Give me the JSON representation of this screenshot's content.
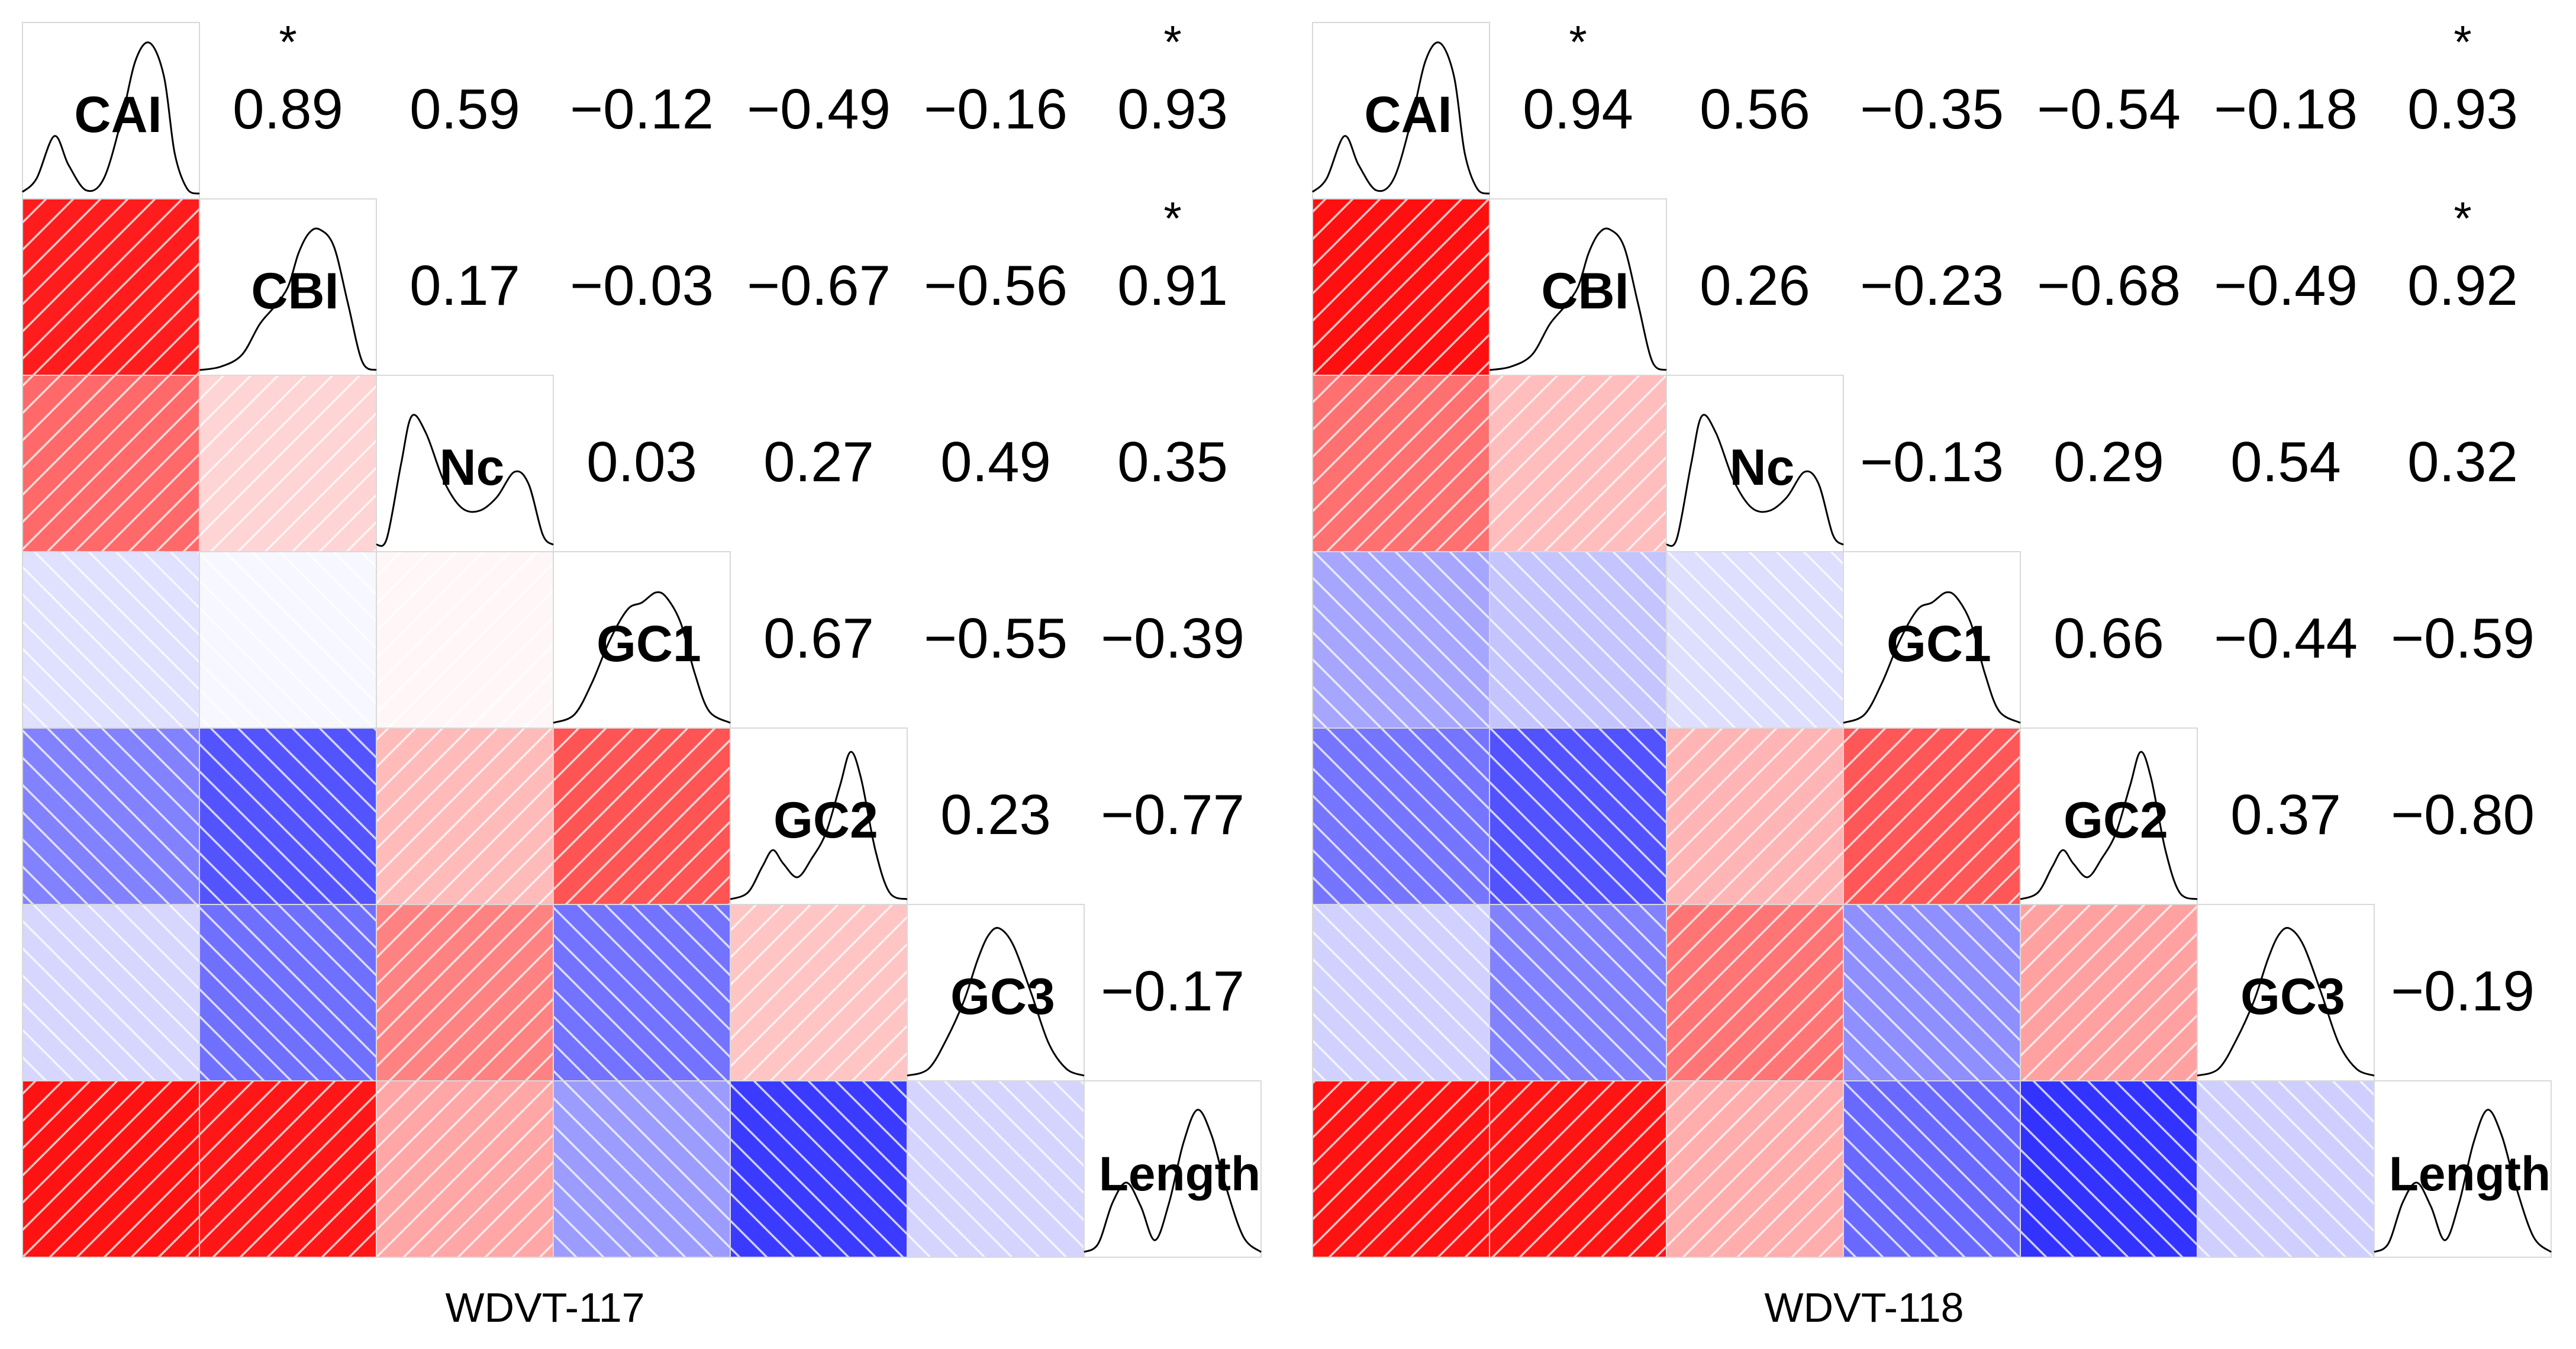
{
  "figure": {
    "variables": [
      "CAI",
      "CBI",
      "Nc",
      "GC1",
      "GC2",
      "GC3",
      "Length"
    ],
    "significance_marker": "*",
    "colors": {
      "positive": "#ff0000",
      "negative": "#0000ff",
      "neutral": "#ffffff",
      "cell_border": "#d9d9d9",
      "hatch": "#ffffff",
      "density": "#000000",
      "text": "#000000"
    }
  },
  "chart_data": [
    {
      "type": "heatmap",
      "title": "WDVT-117",
      "variables": [
        "CAI",
        "CBI",
        "Nc",
        "GC1",
        "GC2",
        "GC3",
        "Length"
      ],
      "correlations": [
        [
          1,
          0.89,
          0.59,
          -0.12,
          -0.49,
          -0.16,
          0.93
        ],
        [
          0.89,
          1,
          0.17,
          -0.03,
          -0.67,
          -0.56,
          0.91
        ],
        [
          0.59,
          0.17,
          1,
          0.03,
          0.27,
          0.49,
          0.35
        ],
        [
          -0.12,
          -0.03,
          0.03,
          1,
          0.67,
          -0.55,
          -0.39
        ],
        [
          -0.49,
          -0.67,
          0.27,
          0.67,
          1,
          0.23,
          -0.77
        ],
        [
          -0.16,
          -0.56,
          0.49,
          -0.55,
          0.23,
          1,
          -0.17
        ],
        [
          0.93,
          0.91,
          0.35,
          -0.39,
          -0.77,
          -0.17,
          1
        ]
      ],
      "labels": [
        [
          "",
          "0.89",
          "0.59",
          "−0.12",
          "−0.49",
          "−0.16",
          "0.93"
        ],
        [
          "",
          "",
          "0.17",
          "−0.03",
          "−0.67",
          "−0.56",
          "0.91"
        ],
        [
          "",
          "",
          "",
          "0.03",
          "0.27",
          "0.49",
          "0.35"
        ],
        [
          "",
          "",
          "",
          "",
          "0.67",
          "−0.55",
          "−0.39"
        ],
        [
          "",
          "",
          "",
          "",
          "",
          "0.23",
          "−0.77"
        ],
        [
          "",
          "",
          "",
          "",
          "",
          "",
          "−0.17"
        ],
        [
          "",
          "",
          "",
          "",
          "",
          "",
          ""
        ]
      ],
      "significant": [
        [
          0,
          1
        ],
        [
          0,
          6
        ],
        [
          1,
          6
        ]
      ]
    },
    {
      "type": "heatmap",
      "title": "WDVT-118",
      "variables": [
        "CAI",
        "CBI",
        "Nc",
        "GC1",
        "GC2",
        "GC3",
        "Length"
      ],
      "correlations": [
        [
          1,
          0.94,
          0.56,
          -0.35,
          -0.54,
          -0.18,
          0.93
        ],
        [
          0.94,
          1,
          0.26,
          -0.23,
          -0.68,
          -0.49,
          0.92
        ],
        [
          0.56,
          0.26,
          1,
          -0.13,
          0.29,
          0.54,
          0.32
        ],
        [
          -0.35,
          -0.23,
          -0.13,
          1,
          0.66,
          -0.44,
          -0.59
        ],
        [
          -0.54,
          -0.68,
          0.29,
          0.66,
          1,
          0.37,
          -0.8
        ],
        [
          -0.18,
          -0.49,
          0.54,
          -0.44,
          0.37,
          1,
          -0.19
        ],
        [
          0.93,
          0.92,
          0.32,
          -0.59,
          -0.8,
          -0.19,
          1
        ]
      ],
      "labels": [
        [
          "",
          "0.94",
          "0.56",
          "−0.35",
          "−0.54",
          "−0.18",
          "0.93"
        ],
        [
          "",
          "",
          "0.26",
          "−0.23",
          "−0.68",
          "−0.49",
          "0.92"
        ],
        [
          "",
          "",
          "",
          "−0.13",
          "0.29",
          "0.54",
          "0.32"
        ],
        [
          "",
          "",
          "",
          "",
          "0.66",
          "−0.44",
          "−0.59"
        ],
        [
          "",
          "",
          "",
          "",
          "",
          "0.37",
          "−0.80"
        ],
        [
          "",
          "",
          "",
          "",
          "",
          "",
          "−0.19"
        ],
        [
          "",
          "",
          "",
          "",
          "",
          "",
          ""
        ]
      ],
      "significant": [
        [
          0,
          1
        ],
        [
          0,
          6
        ],
        [
          1,
          6
        ]
      ]
    }
  ]
}
